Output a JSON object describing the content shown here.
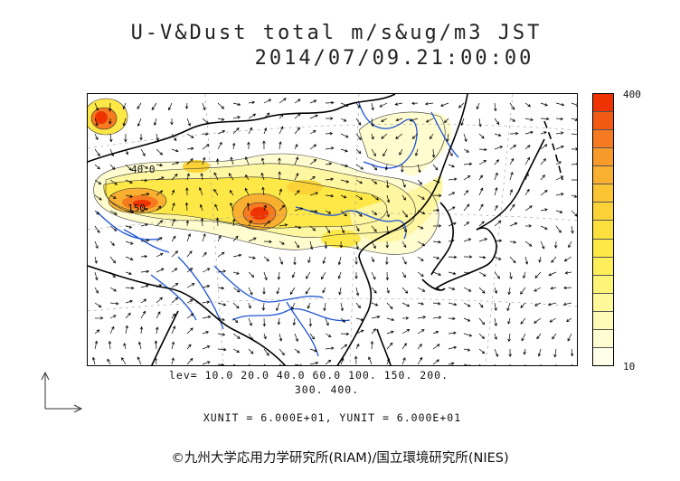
{
  "title": {
    "line1": "U-V&Dust total m/s&ug/m3 JST",
    "line2": "2014/07/09.21:00:00"
  },
  "colorbar": {
    "max_label": "400",
    "min_label": "10",
    "colors": [
      "#ee3300",
      "#f25a14",
      "#f57a20",
      "#f89a2a",
      "#f9b030",
      "#fac433",
      "#fbd337",
      "#fce03e",
      "#fde848",
      "#feef5a",
      "#fef478",
      "#fef89a",
      "#fefab8",
      "#fffcd2",
      "#fffee8"
    ]
  },
  "map": {
    "contour_labels": [
      "40.0",
      "150"
    ],
    "colors": {
      "coast": "#000000",
      "river": "#1f55d6",
      "grid": "#9a9a9a",
      "vector": "#000000"
    }
  },
  "levels": {
    "line1": "lev= 10.0 20.0 40.0 60.0 100. 150. 200.",
    "line2": "300. 400."
  },
  "units": "XUNIT = 6.000E+01, YUNIT = 6.000E+01",
  "copyright": "©九州大学応用力学研究所(RIAM)/国立環境研究所(NIES)"
}
